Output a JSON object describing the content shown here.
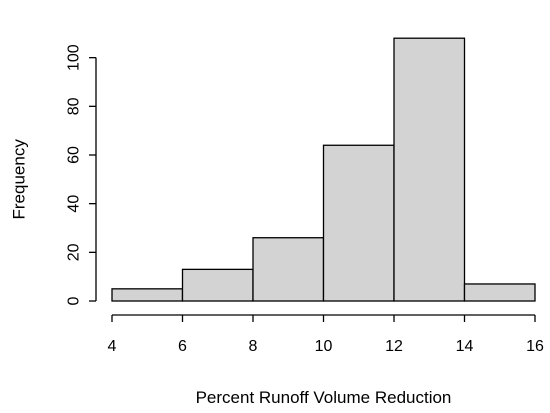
{
  "chart_data": {
    "type": "bar",
    "subtype": "histogram",
    "title": "",
    "xlabel": "Percent Runoff Volume Reduction",
    "ylabel": "Frequency",
    "bins": [
      [
        4,
        6
      ],
      [
        6,
        8
      ],
      [
        8,
        10
      ],
      [
        10,
        12
      ],
      [
        12,
        14
      ],
      [
        14,
        16
      ]
    ],
    "values": [
      5,
      13,
      26,
      64,
      108,
      7
    ],
    "xlim": [
      4,
      16
    ],
    "ylim": [
      0,
      120
    ],
    "xticks": [
      4,
      6,
      8,
      10,
      12,
      14,
      16
    ],
    "yticks": [
      0,
      20,
      40,
      60,
      80,
      100
    ],
    "bar_color": "#d3d3d3",
    "edge_color": "#000000",
    "grid": false,
    "legend": "none"
  }
}
